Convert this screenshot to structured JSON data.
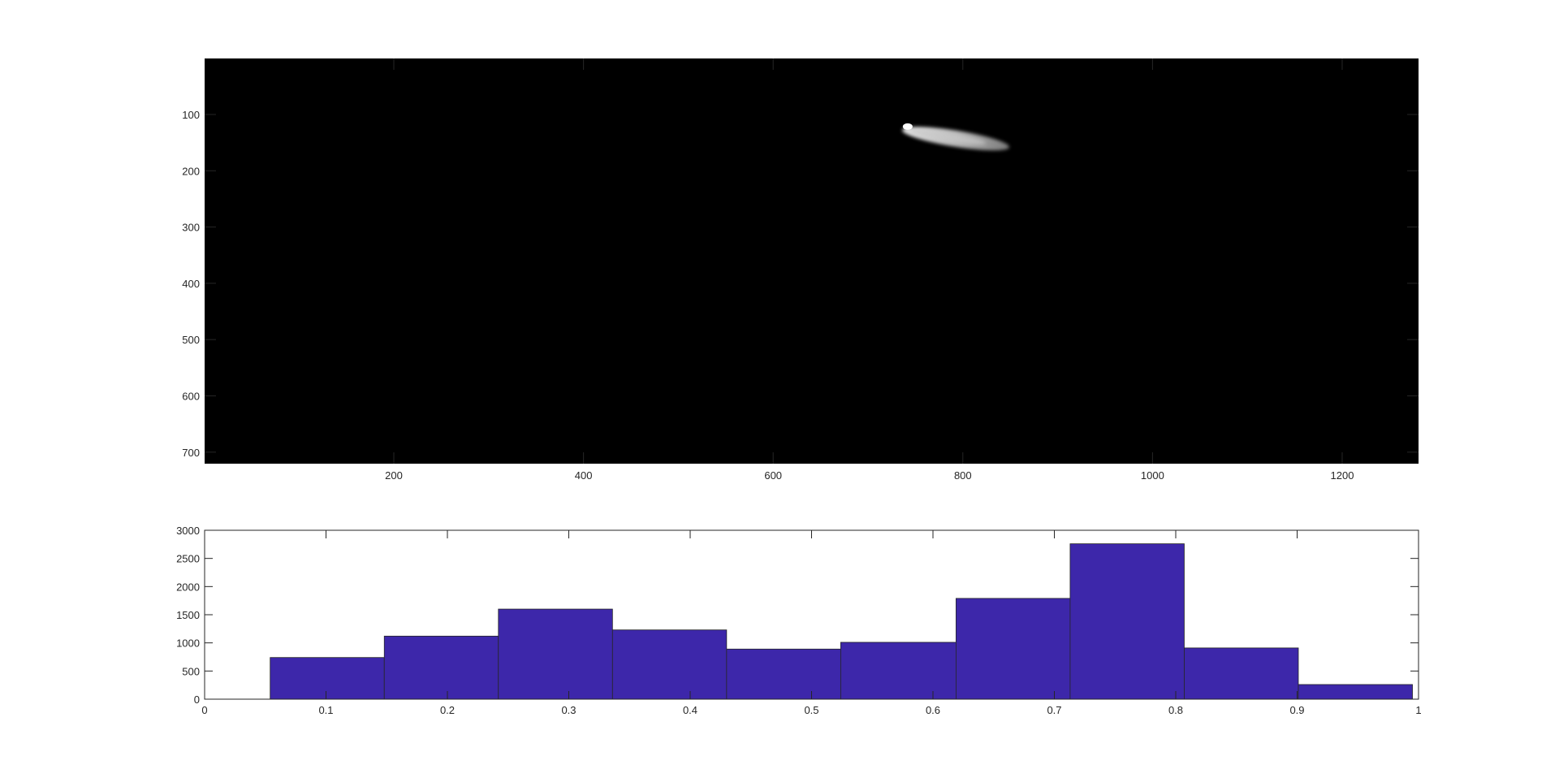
{
  "chart_data": [
    {
      "type": "heatmap",
      "colormap": "gray",
      "background": "#000000",
      "grid": false,
      "xlim": [
        0.5,
        1280.5
      ],
      "ylim": [
        0.5,
        720.5
      ],
      "y_direction": "reverse",
      "xticks": [
        200,
        400,
        600,
        800,
        1000,
        1200
      ],
      "xtick_labels": [
        "200",
        "400",
        "600",
        "800",
        "1000",
        "1200"
      ],
      "yticks": [
        100,
        200,
        300,
        400,
        500,
        600,
        700
      ],
      "ytick_labels": [
        "100",
        "200",
        "300",
        "400",
        "500",
        "600",
        "700"
      ],
      "bright_region": {
        "description": "elongated grey blob with a small white spot at its left tip",
        "x_range": [
          735,
          850
        ],
        "y_range": [
          110,
          170
        ]
      }
    },
    {
      "type": "bar",
      "subtype": "histogram",
      "bar_color": "#3d27aa",
      "edge_color": "#262626",
      "grid": false,
      "xlim": [
        0,
        1
      ],
      "ylim": [
        0,
        3000
      ],
      "bin_edges": [
        0.054,
        0.148,
        0.242,
        0.336,
        0.43,
        0.524,
        0.619,
        0.713,
        0.807,
        0.901,
        0.995
      ],
      "values": [
        740,
        1120,
        1600,
        1230,
        890,
        1010,
        1790,
        2760,
        910,
        260
      ],
      "xticks": [
        0,
        0.1,
        0.2,
        0.3,
        0.4,
        0.5,
        0.6,
        0.7,
        0.8,
        0.9,
        1
      ],
      "xtick_labels": [
        "0",
        "0.1",
        "0.2",
        "0.3",
        "0.4",
        "0.5",
        "0.6",
        "0.7",
        "0.8",
        "0.9",
        "1"
      ],
      "yticks": [
        0,
        500,
        1000,
        1500,
        2000,
        2500,
        3000
      ],
      "ytick_labels": [
        "0",
        "500",
        "1000",
        "1500",
        "2000",
        "2500",
        "3000"
      ]
    }
  ]
}
